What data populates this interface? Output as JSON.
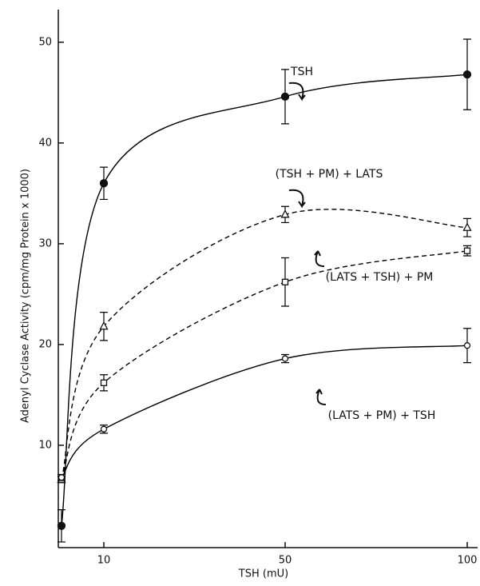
{
  "chart_data": {
    "type": "line",
    "x_label": "TSH (mU)",
    "y_label": "Adenyl Cyclase Activity (cpm/mg Protein x 1000)",
    "categories": [
      null,
      "10",
      "50",
      "100"
    ],
    "ylim": [
      0,
      53
    ],
    "yticks": [
      10,
      20,
      30,
      40,
      50
    ],
    "series": [
      {
        "name": "TSH",
        "color": "#000000",
        "marker": "circle-filled",
        "dashed": false,
        "values": [
          2,
          36,
          44.6,
          46.8
        ],
        "errors": [
          1.6,
          1.6,
          2.7,
          3.5
        ]
      },
      {
        "name": "(TSH + PM) + LATS",
        "color": "#000000",
        "marker": "triangle",
        "dashed": true,
        "values": [
          6.6,
          21.8,
          32.9,
          31.6
        ],
        "errors": [
          0.3,
          1.4,
          0.8,
          0.9
        ]
      },
      {
        "name": "(LATS + TSH) + PM",
        "color": "#000000",
        "marker": "square",
        "dashed": true,
        "values": [
          6.6,
          16.2,
          26.2,
          29.3
        ],
        "errors": [
          0.3,
          0.8,
          2.4,
          0.5
        ]
      },
      {
        "name": "(LATS + PM) + TSH",
        "color": "#000000",
        "marker": "circle-open",
        "dashed": false,
        "values": [
          6.8,
          11.6,
          18.6,
          19.9
        ],
        "errors": [
          0.3,
          0.4,
          0.4,
          1.7
        ]
      }
    ]
  }
}
